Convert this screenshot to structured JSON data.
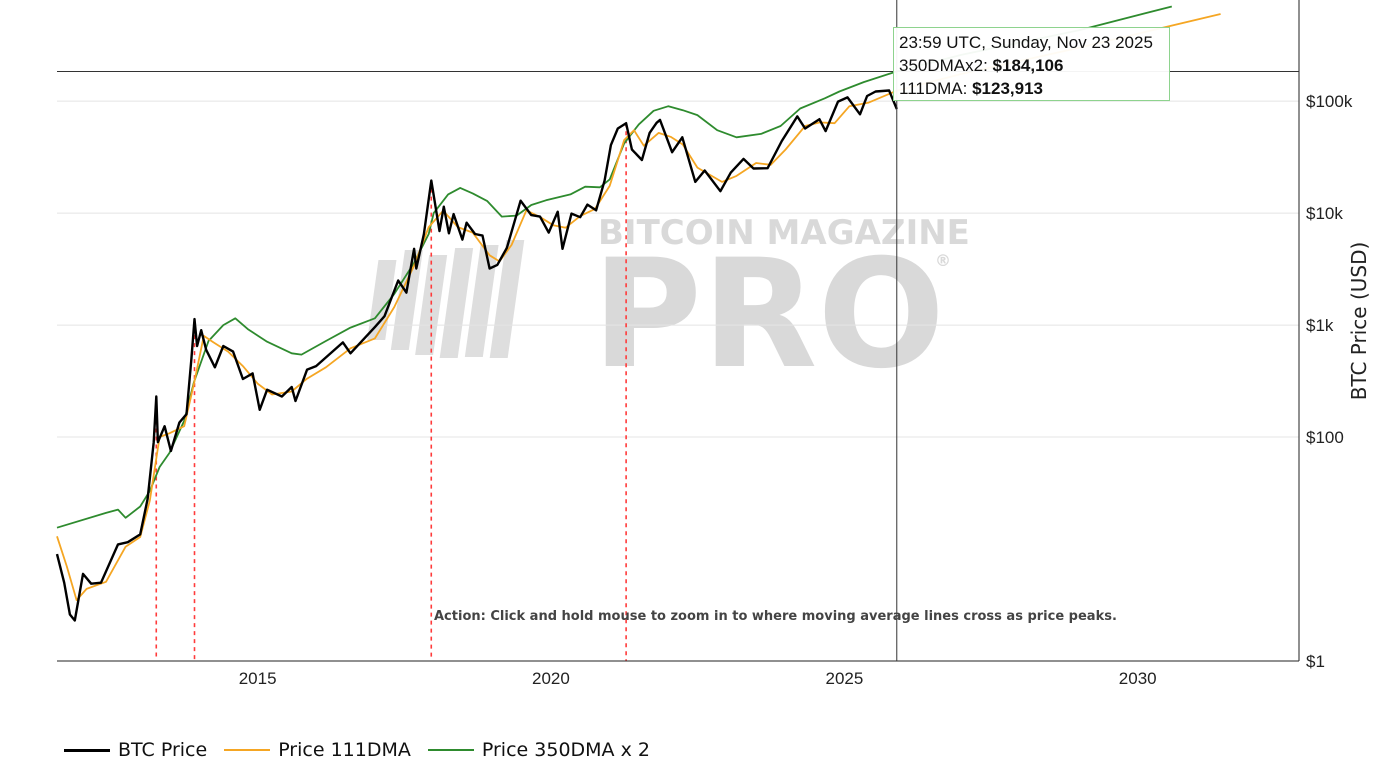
{
  "chart_data": {
    "type": "line",
    "ylabel": "BTC Price (USD)",
    "yscale": "log",
    "ylim": [
      1,
      800000
    ],
    "xlim": [
      "2011-08-01",
      "2032-10-01"
    ],
    "x_ticks": [
      "2015",
      "2020",
      "2025",
      "2030"
    ],
    "y_ticks": [
      {
        "value": 1,
        "label": "$1"
      },
      {
        "value": 100,
        "label": "$100"
      },
      {
        "value": 1000,
        "label": "$1k"
      },
      {
        "value": 10000,
        "label": "$10k"
      },
      {
        "value": 100000,
        "label": "$100k"
      }
    ],
    "grid": true,
    "legend_position": "bottom-left",
    "series": [
      {
        "name": "BTC Price",
        "color": "#000000",
        "points": [
          [
            "2011-08-01",
            9
          ],
          [
            "2011-09-15",
            5
          ],
          [
            "2011-10-20",
            2.6
          ],
          [
            "2011-11-20",
            2.3
          ],
          [
            "2012-01-10",
            6
          ],
          [
            "2012-03-01",
            4.9
          ],
          [
            "2012-05-01",
            5
          ],
          [
            "2012-08-15",
            11
          ],
          [
            "2012-10-15",
            11.5
          ],
          [
            "2012-12-31",
            13.5
          ],
          [
            "2013-02-15",
            28
          ],
          [
            "2013-03-25",
            90
          ],
          [
            "2013-04-10",
            230
          ],
          [
            "2013-04-20",
            90
          ],
          [
            "2013-06-01",
            125
          ],
          [
            "2013-07-10",
            75
          ],
          [
            "2013-09-01",
            135
          ],
          [
            "2013-10-15",
            160
          ],
          [
            "2013-11-15",
            500
          ],
          [
            "2013-12-04",
            1130
          ],
          [
            "2013-12-20",
            650
          ],
          [
            "2014-01-15",
            900
          ],
          [
            "2014-02-15",
            600
          ],
          [
            "2014-04-10",
            420
          ],
          [
            "2014-06-01",
            650
          ],
          [
            "2014-08-01",
            580
          ],
          [
            "2014-10-01",
            330
          ],
          [
            "2014-12-01",
            370
          ],
          [
            "2015-01-14",
            175
          ],
          [
            "2015-03-01",
            265
          ],
          [
            "2015-06-01",
            230
          ],
          [
            "2015-08-01",
            280
          ],
          [
            "2015-08-25",
            210
          ],
          [
            "2015-11-05",
            400
          ],
          [
            "2015-12-31",
            430
          ],
          [
            "2016-06-15",
            700
          ],
          [
            "2016-08-01",
            560
          ],
          [
            "2016-12-31",
            960
          ],
          [
            "2017-03-01",
            1200
          ],
          [
            "2017-05-25",
            2500
          ],
          [
            "2017-07-15",
            1950
          ],
          [
            "2017-09-01",
            4800
          ],
          [
            "2017-09-15",
            3200
          ],
          [
            "2017-11-01",
            6500
          ],
          [
            "2017-12-17",
            19500
          ],
          [
            "2018-02-06",
            6900
          ],
          [
            "2018-03-05",
            11400
          ],
          [
            "2018-04-06",
            6600
          ],
          [
            "2018-05-05",
            9800
          ],
          [
            "2018-06-29",
            5800
          ],
          [
            "2018-07-25",
            8200
          ],
          [
            "2018-09-15",
            6500
          ],
          [
            "2018-11-01",
            6300
          ],
          [
            "2018-12-15",
            3200
          ],
          [
            "2019-02-01",
            3450
          ],
          [
            "2019-04-02",
            4900
          ],
          [
            "2019-06-26",
            12900
          ],
          [
            "2019-09-01",
            9600
          ],
          [
            "2019-10-25",
            9300
          ],
          [
            "2019-12-18",
            6700
          ],
          [
            "2020-02-12",
            10300
          ],
          [
            "2020-03-13",
            4800
          ],
          [
            "2020-05-08",
            9900
          ],
          [
            "2020-07-01",
            9200
          ],
          [
            "2020-08-15",
            11900
          ],
          [
            "2020-10-08",
            10600
          ],
          [
            "2020-11-30",
            19500
          ],
          [
            "2021-01-08",
            40500
          ],
          [
            "2021-02-20",
            57000
          ],
          [
            "2021-04-13",
            63500
          ],
          [
            "2021-05-19",
            37000
          ],
          [
            "2021-07-20",
            29800
          ],
          [
            "2021-09-06",
            52000
          ],
          [
            "2021-10-20",
            64000
          ],
          [
            "2021-11-10",
            68000
          ],
          [
            "2022-01-24",
            35000
          ],
          [
            "2022-03-29",
            47500
          ],
          [
            "2022-06-18",
            19000
          ],
          [
            "2022-08-15",
            24000
          ],
          [
            "2022-11-21",
            15700
          ],
          [
            "2023-01-25",
            23000
          ],
          [
            "2023-04-14",
            30500
          ],
          [
            "2023-06-15",
            25000
          ],
          [
            "2023-09-11",
            25200
          ],
          [
            "2023-12-08",
            44000
          ],
          [
            "2024-03-14",
            73000
          ],
          [
            "2024-05-01",
            57000
          ],
          [
            "2024-07-29",
            69000
          ],
          [
            "2024-09-06",
            54000
          ],
          [
            "2024-11-22",
            99000
          ],
          [
            "2025-01-20",
            108000
          ],
          [
            "2025-04-08",
            76300
          ],
          [
            "2025-05-22",
            111000
          ],
          [
            "2025-07-14",
            122000
          ],
          [
            "2025-10-06",
            124500
          ],
          [
            "2025-11-23",
            85000
          ]
        ]
      },
      {
        "name": "Price 111DMA",
        "color": "#f5a623",
        "points": [
          [
            "2011-08-01",
            13
          ],
          [
            "2011-10-01",
            7
          ],
          [
            "2011-12-01",
            3.5
          ],
          [
            "2012-02-01",
            4.4
          ],
          [
            "2012-06-01",
            5.1
          ],
          [
            "2012-10-01",
            10.5
          ],
          [
            "2012-12-31",
            12.8
          ],
          [
            "2013-03-01",
            27
          ],
          [
            "2013-05-01",
            100
          ],
          [
            "2013-07-01",
            108
          ],
          [
            "2013-10-01",
            125
          ],
          [
            "2013-12-01",
            300
          ],
          [
            "2014-01-31",
            800
          ],
          [
            "2014-04-01",
            700
          ],
          [
            "2014-07-01",
            580
          ],
          [
            "2014-10-01",
            430
          ],
          [
            "2015-01-01",
            300
          ],
          [
            "2015-04-01",
            240
          ],
          [
            "2015-08-01",
            255
          ],
          [
            "2015-11-01",
            330
          ],
          [
            "2016-03-01",
            420
          ],
          [
            "2016-08-01",
            620
          ],
          [
            "2016-12-31",
            760
          ],
          [
            "2017-05-01",
            1450
          ],
          [
            "2017-09-01",
            3400
          ],
          [
            "2017-12-01",
            7500
          ],
          [
            "2018-03-01",
            10500
          ],
          [
            "2018-06-01",
            7500
          ],
          [
            "2018-09-01",
            6700
          ],
          [
            "2018-12-15",
            4200
          ],
          [
            "2019-02-15",
            3700
          ],
          [
            "2019-05-01",
            5200
          ],
          [
            "2019-08-01",
            10600
          ],
          [
            "2019-11-01",
            9100
          ],
          [
            "2020-01-15",
            7800
          ],
          [
            "2020-04-01",
            7400
          ],
          [
            "2020-07-01",
            9400
          ],
          [
            "2020-10-01",
            10900
          ],
          [
            "2021-01-01",
            17500
          ],
          [
            "2021-04-01",
            45000
          ],
          [
            "2021-06-01",
            55000
          ],
          [
            "2021-08-01",
            40000
          ],
          [
            "2021-11-01",
            52000
          ],
          [
            "2022-01-15",
            48000
          ],
          [
            "2022-04-01",
            41000
          ],
          [
            "2022-07-01",
            25500
          ],
          [
            "2022-12-01",
            19000
          ],
          [
            "2023-03-01",
            21500
          ],
          [
            "2023-07-01",
            28000
          ],
          [
            "2023-10-01",
            27000
          ],
          [
            "2024-01-01",
            37000
          ],
          [
            "2024-05-01",
            60000
          ],
          [
            "2024-08-01",
            64500
          ],
          [
            "2024-11-01",
            63500
          ],
          [
            "2025-02-01",
            90000
          ],
          [
            "2025-06-01",
            97000
          ],
          [
            "2025-11-23",
            123913
          ],
          [
            "2027-01-01",
            175000
          ],
          [
            "2029-01-01",
            300000
          ],
          [
            "2031-06-01",
            600000
          ]
        ]
      },
      {
        "name": "Price 350DMA x 2",
        "color": "#2e8b2e",
        "points": [
          [
            "2011-08-01",
            15.5
          ],
          [
            "2012-06-01",
            21
          ],
          [
            "2012-08-15",
            22.5
          ],
          [
            "2012-10-01",
            19
          ],
          [
            "2012-12-31",
            24
          ],
          [
            "2013-03-01",
            33
          ],
          [
            "2013-05-01",
            54
          ],
          [
            "2013-07-01",
            72
          ],
          [
            "2013-10-01",
            140
          ],
          [
            "2013-12-01",
            310
          ],
          [
            "2014-03-01",
            720
          ],
          [
            "2014-06-01",
            1000
          ],
          [
            "2014-08-15",
            1150
          ],
          [
            "2014-11-01",
            920
          ],
          [
            "2015-03-01",
            710
          ],
          [
            "2015-08-01",
            560
          ],
          [
            "2015-10-01",
            545
          ],
          [
            "2016-03-01",
            720
          ],
          [
            "2016-08-01",
            950
          ],
          [
            "2016-12-31",
            1150
          ],
          [
            "2017-05-01",
            1900
          ],
          [
            "2017-09-01",
            3600
          ],
          [
            "2017-12-01",
            6500
          ],
          [
            "2018-01-01",
            10000
          ],
          [
            "2018-04-01",
            14700
          ],
          [
            "2018-06-15",
            16800
          ],
          [
            "2018-09-01",
            15000
          ],
          [
            "2018-12-01",
            12800
          ],
          [
            "2019-03-01",
            9300
          ],
          [
            "2019-06-01",
            9500
          ],
          [
            "2019-09-01",
            11800
          ],
          [
            "2019-12-01",
            13000
          ],
          [
            "2020-05-01",
            14700
          ],
          [
            "2020-08-01",
            17200
          ],
          [
            "2020-11-01",
            17000
          ],
          [
            "2021-01-01",
            20000
          ],
          [
            "2021-04-01",
            42000
          ],
          [
            "2021-07-01",
            62000
          ],
          [
            "2021-10-01",
            82000
          ],
          [
            "2022-01-01",
            90000
          ],
          [
            "2022-04-01",
            83000
          ],
          [
            "2022-07-01",
            75000
          ],
          [
            "2022-11-01",
            55000
          ],
          [
            "2023-03-01",
            47500
          ],
          [
            "2023-08-01",
            51000
          ],
          [
            "2023-12-01",
            60000
          ],
          [
            "2024-04-01",
            86000
          ],
          [
            "2024-09-01",
            106000
          ],
          [
            "2024-12-01",
            122000
          ],
          [
            "2025-05-01",
            148000
          ],
          [
            "2025-11-23",
            184106
          ],
          [
            "2027-01-01",
            260000
          ],
          [
            "2029-01-01",
            430000
          ],
          [
            "2030-08-01",
            700000
          ]
        ]
      }
    ],
    "cycle_peak_markers": [
      "2013-04-10",
      "2013-12-04",
      "2017-12-17",
      "2021-04-13"
    ],
    "crosshair": {
      "x": "2025-11-23",
      "y": 184106,
      "tooltip": {
        "date": "23:59 UTC, Sunday, Nov 23 2025",
        "line1_label": "350DMAx2: ",
        "line1_value": "$184,106",
        "line2_label": "111DMA: ",
        "line2_value": "$123,913"
      }
    },
    "annotation": "Action: Click and hold mouse to zoom in to where moving average lines cross as price peaks."
  },
  "watermark": {
    "top": "BITCOIN MAGAZINE",
    "main": "PRO",
    "mark": "®"
  }
}
